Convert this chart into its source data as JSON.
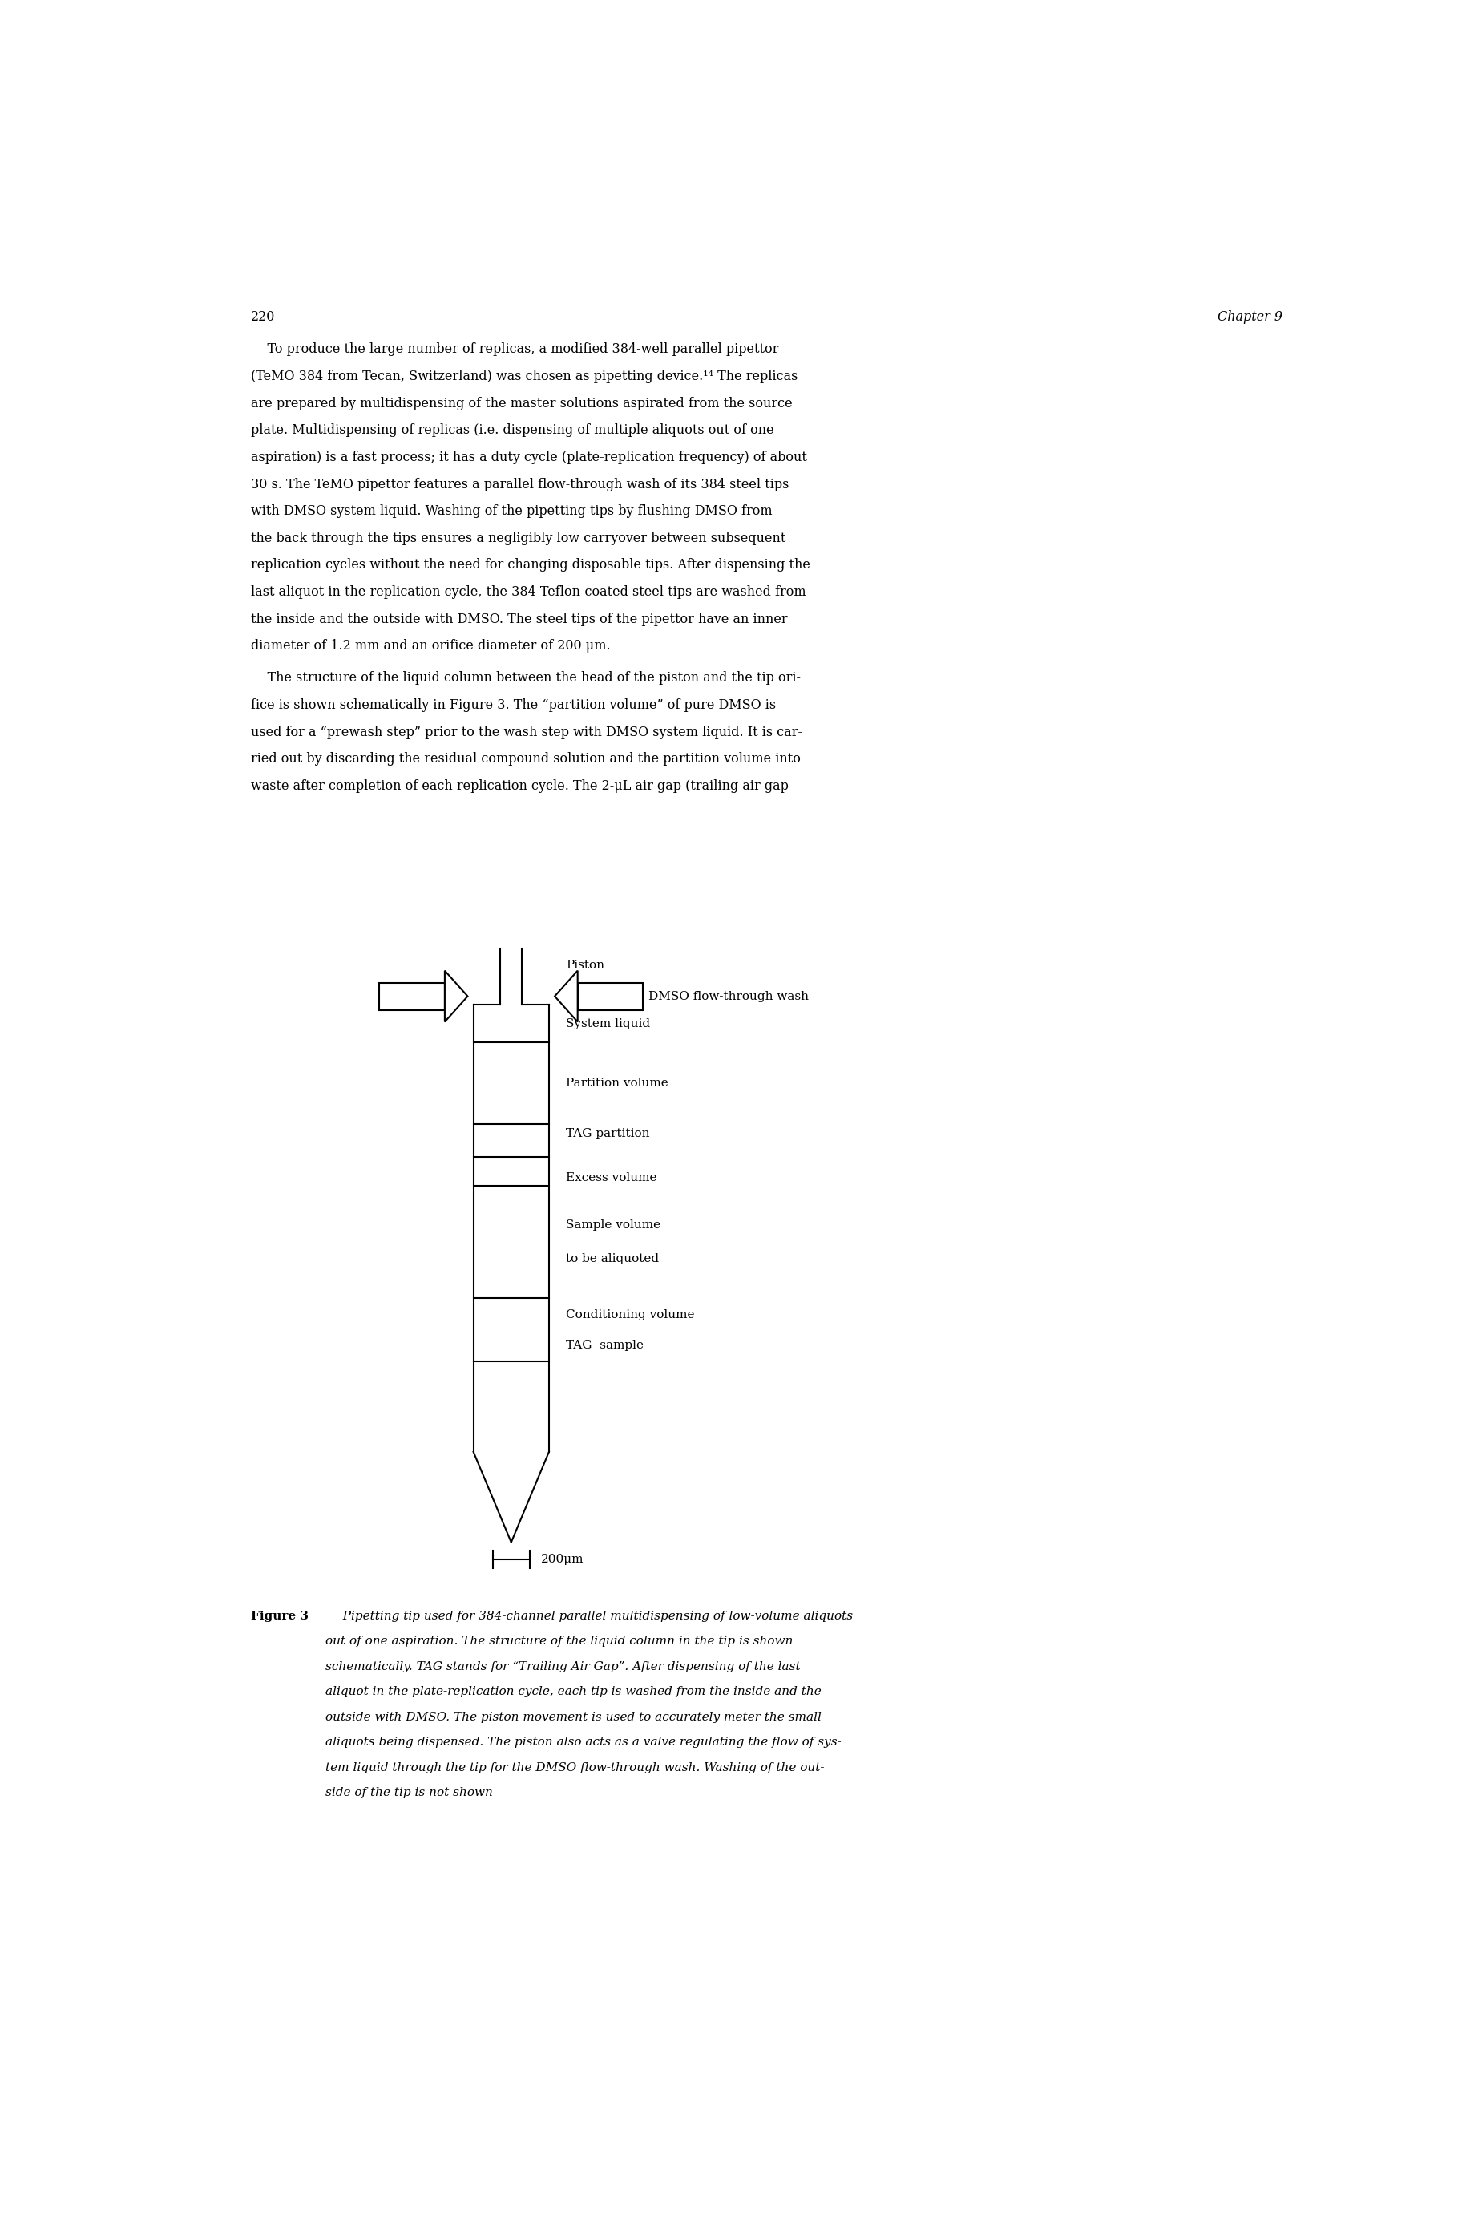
{
  "page_number": "220",
  "chapter": "Chapter 9",
  "p1_lines": [
    "    To produce the large number of replicas, a modified 384-well parallel pipettor",
    "(TeMO 384 from Tecan, Switzerland) was chosen as pipetting device.¹⁴ The replicas",
    "are prepared by multidispensing of the master solutions aspirated from the source",
    "plate. Multidispensing of replicas (i.e. dispensing of multiple aliquots out of one",
    "aspiration) is a fast process; it has a duty cycle (plate-replication frequency) of about",
    "30 s. The TeMO pipettor features a parallel flow-through wash of its 384 steel tips",
    "with DMSO system liquid. Washing of the pipetting tips by flushing DMSO from",
    "the back through the tips ensures a negligibly low carryover between subsequent",
    "replication cycles without the need for changing disposable tips. After dispensing the",
    "last aliquot in the replication cycle, the 384 Teflon-coated steel tips are washed from",
    "the inside and the outside with DMSO. The steel tips of the pipettor have an inner",
    "diameter of 1.2 mm and an orifice diameter of 200 μm."
  ],
  "p2_lines": [
    "    The structure of the liquid column between the head of the piston and the tip ori-",
    "fice is shown schematically in Figure 3. The “partition volume” of pure DMSO is",
    "used for a “prewash step” prior to the wash step with DMSO system liquid. It is car-",
    "ried out by discarding the residual compound solution and the partition volume into",
    "waste after completion of each replication cycle. The 2-μL air gap (trailing air gap"
  ],
  "cap_line1_bold": "Figure 3",
  "cap_line1_italic": "  Pipetting tip used for 384-channel parallel multidispensing of low-volume aliquots",
  "cap_lines_italic": [
    "out of one aspiration. The structure of the liquid column in the tip is shown",
    "schematically. TAG stands for “Trailing Air Gap”. After dispensing of the last",
    "aliquot in the plate-replication cycle, each tip is washed from the inside and the",
    "outside with DMSO. The piston movement is used to accurately meter the small",
    "aliquots being dispensed. The piston also acts as a valve regulating the flow of sys-",
    "tem liquid through the tip for the DMSO flow-through wash. Washing of the out-",
    "side of the tip is not shown"
  ],
  "diag_labels": {
    "piston": "Piston",
    "dmso": "DMSO flow-through wash",
    "system_liquid": "System liquid",
    "partition_volume": "Partition volume",
    "tag_partition": "TAG partition",
    "excess_volume": "Excess volume",
    "sample_volume_1": "Sample volume",
    "sample_volume_2": "to be aliquoted",
    "conditioning": "Conditioning volume",
    "tag_sample": "TAG  sample",
    "scale": "200μm"
  },
  "bg_color": "#ffffff",
  "text_color": "#000000"
}
